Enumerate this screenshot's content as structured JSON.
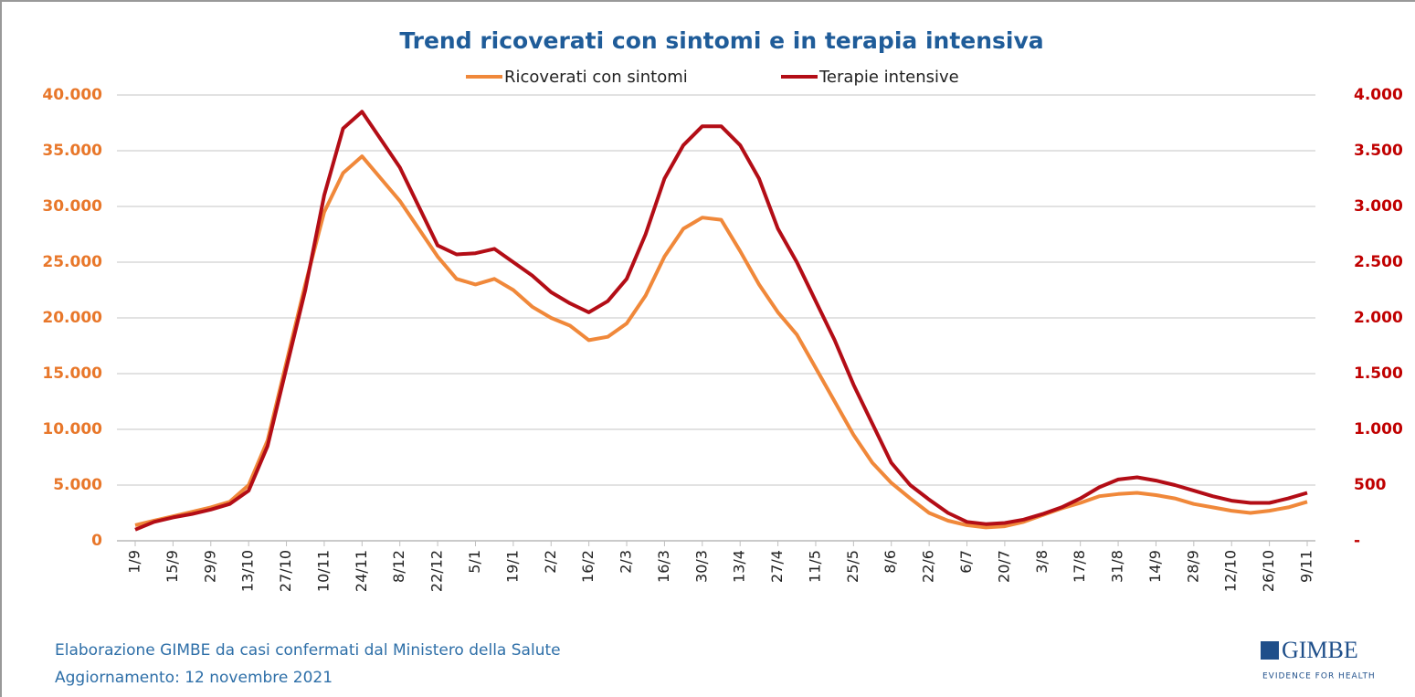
{
  "chart_data": {
    "type": "line",
    "title": "Trend ricoverati con sintomi e in terapia intensiva",
    "categories": [
      "1/9",
      null,
      "15/9",
      null,
      "29/9",
      null,
      "13/10",
      null,
      "27/10",
      null,
      "10/11",
      null,
      "24/11",
      null,
      "8/12",
      null,
      "22/12",
      null,
      "5/1",
      null,
      "19/1",
      null,
      "2/2",
      null,
      "16/2",
      null,
      "2/3",
      null,
      "16/3",
      null,
      "30/3",
      null,
      "13/4",
      null,
      "27/4",
      null,
      "11/5",
      null,
      "25/5",
      null,
      "8/6",
      null,
      "22/6",
      null,
      "6/7",
      null,
      "20/7",
      null,
      "3/8",
      null,
      "17/8",
      null,
      "31/8",
      null,
      "14/9",
      null,
      "28/9",
      null,
      "12/10",
      null,
      "26/10",
      null,
      "9/11"
    ],
    "series": [
      {
        "name": "Ricoverati con sintomi",
        "color": "#f0883a",
        "axis": "y",
        "values": [
          1400,
          1800,
          2200,
          2600,
          3000,
          3500,
          5000,
          9000,
          16000,
          23000,
          29500,
          33000,
          34500,
          32500,
          30500,
          28000,
          25500,
          23500,
          23000,
          23500,
          22500,
          21000,
          20000,
          19300,
          18000,
          18300,
          19500,
          22000,
          25500,
          28000,
          29000,
          28800,
          26000,
          23000,
          20500,
          18500,
          15500,
          12500,
          9500,
          7000,
          5200,
          3800,
          2500,
          1800,
          1400,
          1200,
          1300,
          1700,
          2300,
          2900,
          3400,
          4000,
          4200,
          4300,
          4100,
          3800,
          3300,
          3000,
          2700,
          2500,
          2700,
          3000,
          3500
        ]
      },
      {
        "name": "Terapie intensive",
        "color": "#b30d16",
        "axis": "y2",
        "values": [
          100,
          170,
          210,
          240,
          280,
          330,
          450,
          850,
          1550,
          2250,
          3100,
          3700,
          3850,
          3600,
          3350,
          3000,
          2650,
          2570,
          2580,
          2620,
          2500,
          2380,
          2230,
          2130,
          2050,
          2150,
          2350,
          2750,
          3250,
          3550,
          3720,
          3720,
          3550,
          3250,
          2800,
          2500,
          2150,
          1800,
          1400,
          1050,
          700,
          500,
          370,
          250,
          170,
          150,
          160,
          190,
          240,
          300,
          380,
          480,
          550,
          570,
          540,
          500,
          450,
          400,
          360,
          340,
          340,
          380,
          430
        ]
      }
    ],
    "ylim": [
      0,
      40000
    ],
    "yticks": [
      0,
      {
        "value": 5000,
        "label": "5.000"
      },
      {
        "value": 10000,
        "label": "10.000"
      },
      {
        "value": 15000,
        "label": "15.000"
      },
      {
        "value": 20000,
        "label": "20.000"
      },
      {
        "value": 25000,
        "label": "25.000"
      },
      {
        "value": 30000,
        "label": "30.000"
      },
      {
        "value": 35000,
        "label": "35.000"
      },
      {
        "value": 40000,
        "label": "40.000"
      }
    ],
    "y2lim": [
      0,
      4000
    ],
    "y2ticks": [
      {
        "value": 0,
        "label": "-"
      },
      500,
      {
        "value": 1000,
        "label": "1.000"
      },
      {
        "value": 1500,
        "label": "1.500"
      },
      {
        "value": 2000,
        "label": "2.000"
      },
      {
        "value": 2500,
        "label": "2.500"
      },
      {
        "value": 3000,
        "label": "3.000"
      },
      {
        "value": 3500,
        "label": "3.500"
      },
      {
        "value": 4000,
        "label": "4.000"
      }
    ],
    "grid": true,
    "legend": "top",
    "ycolor": "#e8772a",
    "y2color": "#c00000",
    "source": "Elaborazione GIMBE da casi confermati dal Ministero della Salute",
    "updated": "Aggiornamento: 12 novembre 2021",
    "logo": "GIMBE",
    "logo_tagline": "EVIDENCE FOR HEALTH"
  }
}
